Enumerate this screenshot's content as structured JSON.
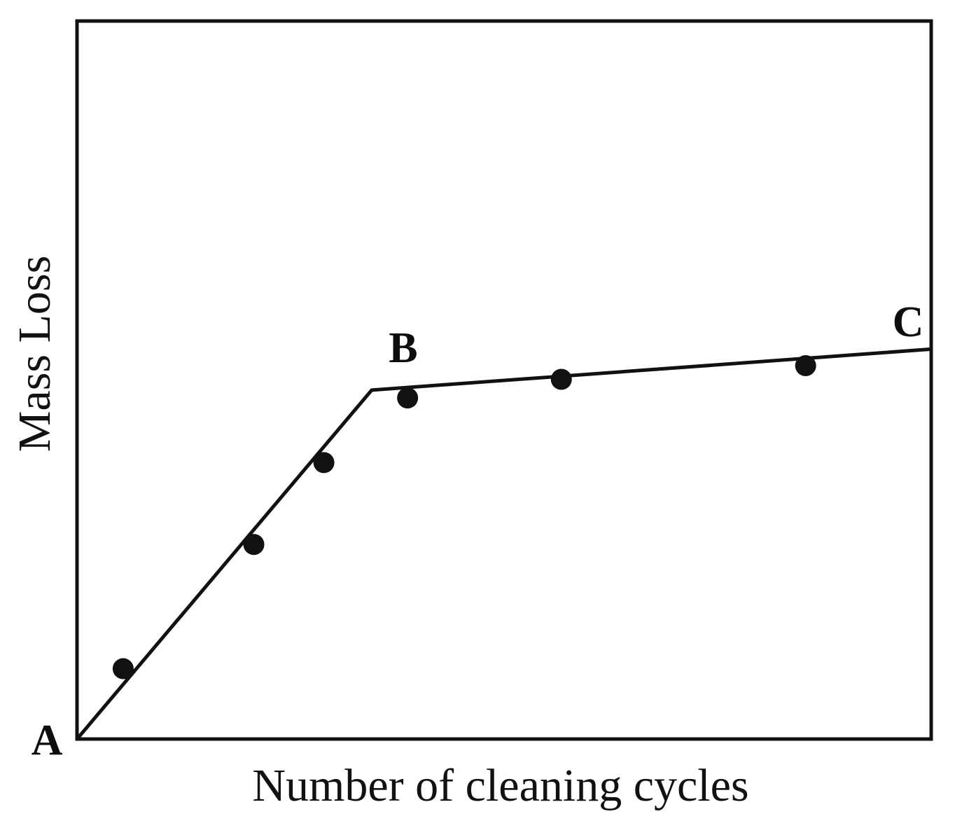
{
  "page": {
    "background_color": "#ffffff",
    "ink_color": "#111111"
  },
  "chart_data": {
    "type": "line",
    "title": "",
    "xlabel": "Number of cleaning cycles",
    "ylabel": "Mass Loss",
    "xlim": [
      0,
      1
    ],
    "ylim": [
      0,
      1
    ],
    "grid": false,
    "legend": null,
    "axis_tick_labels": {
      "x": [],
      "y": []
    },
    "series": [
      {
        "name": "fitted-bilinear-line",
        "type": "line",
        "x": [
          0.0,
          0.345,
          1.0
        ],
        "y": [
          0.0,
          0.486,
          0.543
        ]
      },
      {
        "name": "measured-points",
        "type": "scatter",
        "x": [
          0.054,
          0.207,
          0.289,
          0.387,
          0.567,
          0.853
        ],
        "y": [
          0.098,
          0.271,
          0.385,
          0.475,
          0.501,
          0.52
        ]
      }
    ],
    "annotations": [
      {
        "label": "A",
        "x": 0.0,
        "y": 0.0,
        "position": "below-left-of-origin"
      },
      {
        "label": "B",
        "x": 0.345,
        "y": 0.486,
        "position": "above-bend"
      },
      {
        "label": "C",
        "x": 1.0,
        "y": 0.543,
        "position": "above-line-end-at-right-border"
      }
    ]
  }
}
